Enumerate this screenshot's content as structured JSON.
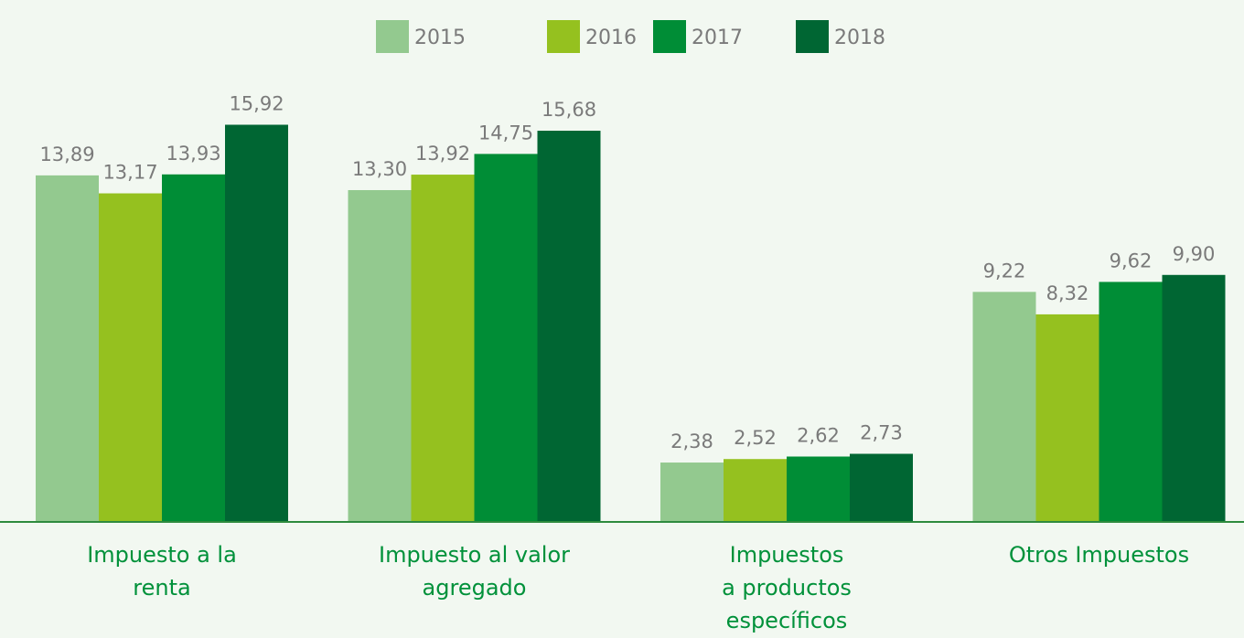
{
  "chart_data": {
    "type": "bar",
    "categories": [
      [
        "Impuesto a la",
        "renta"
      ],
      [
        "Impuesto al valor",
        "agregado"
      ],
      [
        "Impuestos",
        "a productos",
        "específicos"
      ],
      [
        "Otros Impuestos"
      ]
    ],
    "series": [
      {
        "name": "2015",
        "color": "#93c98f",
        "values": [
          13.89,
          13.3,
          2.38,
          9.22
        ],
        "value_labels": [
          "13,89",
          "13,30",
          "2,38",
          "9,22"
        ]
      },
      {
        "name": "2016",
        "color": "#95c11f",
        "values": [
          13.17,
          13.92,
          2.52,
          8.32
        ],
        "value_labels": [
          "13,17",
          "13,92",
          "2,52",
          "8,32"
        ]
      },
      {
        "name": "2017",
        "color": "#008d36",
        "values": [
          13.93,
          14.75,
          2.62,
          9.62
        ],
        "value_labels": [
          "13,93",
          "14,75",
          "2,62",
          "9,62"
        ]
      },
      {
        "name": "2018",
        "color": "#006633",
        "values": [
          15.92,
          15.68,
          2.73,
          9.9
        ],
        "value_labels": [
          "15,92",
          "15,68",
          "2,73",
          "9,90"
        ]
      }
    ],
    "ylim": [
      0,
      17
    ],
    "legend": "top"
  }
}
